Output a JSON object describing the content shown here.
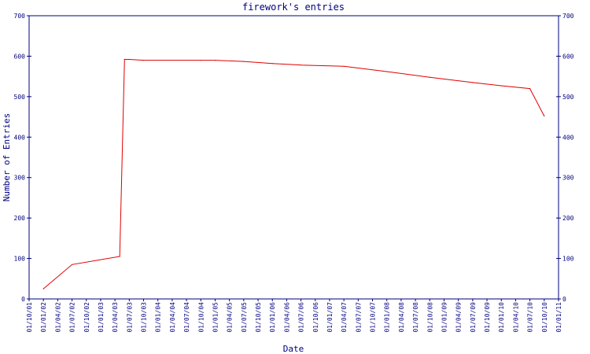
{
  "chart_data": {
    "type": "line",
    "title": "firework's entries",
    "xlabel": "Date",
    "ylabel": "Number of Entries",
    "ylim": [
      0,
      700
    ],
    "yticks": [
      0,
      100,
      200,
      300,
      400,
      500,
      600,
      700
    ],
    "grid": false,
    "legend": "none",
    "x_tick_labels": [
      "01/10/01",
      "01/01/02",
      "01/04/02",
      "01/07/02",
      "01/10/02",
      "01/01/03",
      "01/04/03",
      "01/07/03",
      "01/10/03",
      "01/01/04",
      "01/04/04",
      "01/07/04",
      "01/10/04",
      "01/01/05",
      "01/04/05",
      "01/07/05",
      "01/10/05",
      "01/01/06",
      "01/04/06",
      "01/07/06",
      "01/10/06",
      "01/01/07",
      "01/04/07",
      "01/07/07",
      "01/10/07",
      "01/01/08",
      "01/04/08",
      "01/07/08",
      "01/10/08",
      "01/01/09",
      "01/04/09",
      "01/07/09",
      "01/10/09",
      "01/01/10",
      "01/04/10",
      "01/07/10",
      "01/10/10",
      "01/01/11"
    ],
    "series": [
      {
        "x": [
          "01/01/02",
          "01/07/02",
          "01/05/03",
          "01/06/03",
          "01/07/03",
          "01/10/03",
          "01/10/04",
          "01/01/05",
          "01/07/05",
          "01/01/06",
          "01/07/06",
          "01/04/07",
          "01/01/08",
          "01/10/08",
          "01/07/09",
          "01/01/10",
          "01/07/10",
          "01/10/10"
        ],
        "y": [
          25,
          85,
          105,
          592,
          592,
          590,
          590,
          590,
          587,
          582,
          578,
          575,
          562,
          548,
          535,
          527,
          520,
          452
        ]
      }
    ],
    "colors": {
      "axis": "#00007f",
      "text": "#00007f",
      "line": "#e00000",
      "background": "#ffffff"
    }
  }
}
